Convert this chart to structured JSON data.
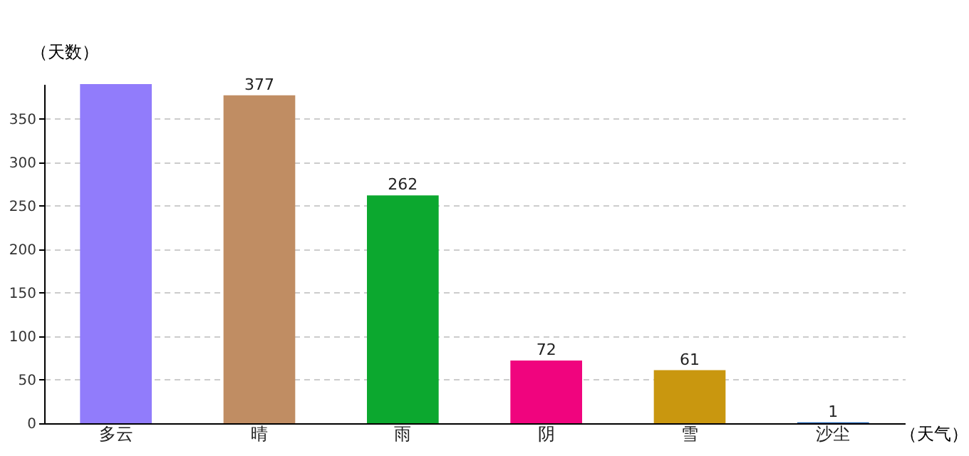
{
  "chart_data": {
    "type": "bar",
    "categories": [
      "多云",
      "晴",
      "雨",
      "阴",
      "雪",
      "沙尘"
    ],
    "values": [
      390,
      377,
      262,
      72,
      61,
      1
    ],
    "value_labels": [
      null,
      "377",
      "262",
      "72",
      "61",
      "1"
    ],
    "colors": [
      "#917cfb",
      "#c08d63",
      "#0ca82f",
      "#f0047e",
      "#c9970f",
      "#1560b0"
    ],
    "xlabel": "（天气）",
    "ylabel": "（天数）",
    "ylim": [
      0,
      390
    ],
    "yticks": [
      0,
      50,
      100,
      150,
      200,
      250,
      300,
      350
    ],
    "grid": "y"
  }
}
